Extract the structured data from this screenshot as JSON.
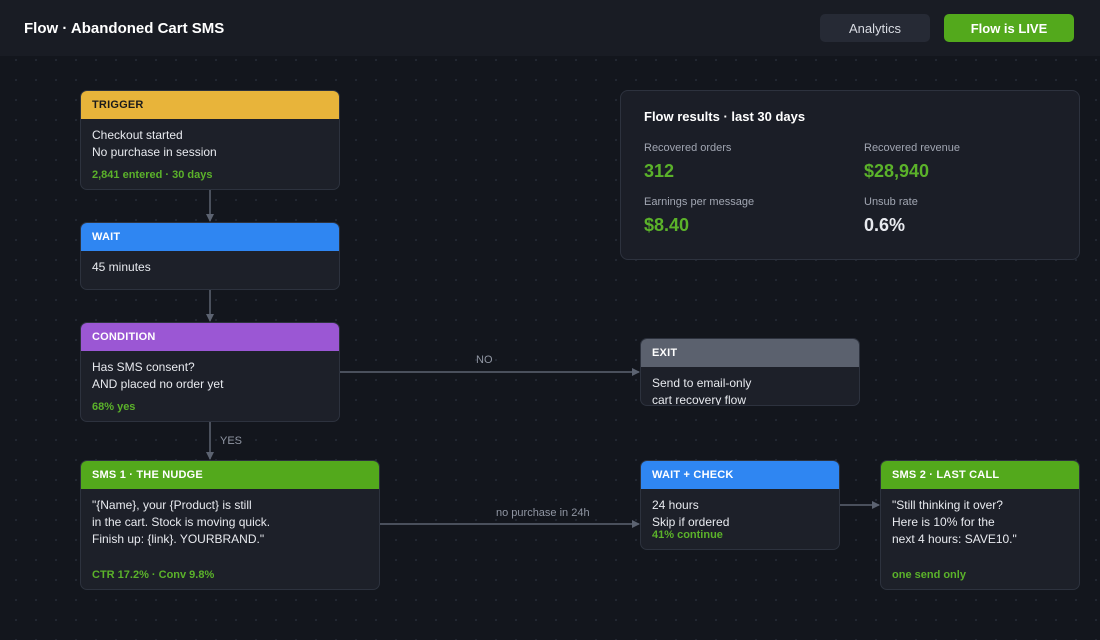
{
  "header": {
    "title": "Flow · Abandoned Cart SMS",
    "analytics_label": "Analytics",
    "live_label": "Flow is LIVE"
  },
  "colors": {
    "background": "#13161d",
    "trigger": "#e8b43a",
    "wait": "#2f86f2",
    "condition": "#9b57d4",
    "sms": "#53a91c",
    "exit": "#5b616e",
    "stat_green": "#5bb22a"
  },
  "nodes": {
    "trigger": {
      "label": "TRIGGER",
      "lines": [
        "Checkout started",
        "No purchase in session"
      ],
      "stat": "2,841 entered · 30 days"
    },
    "wait": {
      "label": "WAIT",
      "lines": [
        "45 minutes"
      ]
    },
    "condition": {
      "label": "CONDITION",
      "lines": [
        "Has SMS consent?",
        "AND placed no order yet"
      ],
      "stat": "68% yes"
    },
    "exit": {
      "label": "EXIT",
      "lines": [
        "Send to email-only",
        "cart recovery flow"
      ]
    },
    "sms1": {
      "label": "SMS 1 · THE NUDGE",
      "lines": [
        "\"{Name}, your {Product} is still",
        "in the cart. Stock is moving quick.",
        "Finish up: {link}. YOURBRAND.\""
      ],
      "stat": "CTR 17.2% · Conv 9.8%"
    },
    "wait_check": {
      "label": "WAIT + CHECK",
      "lines": [
        "24 hours",
        "Skip if ordered"
      ],
      "stat": "41% continue"
    },
    "sms2": {
      "label": "SMS 2 · LAST CALL",
      "lines": [
        "\"Still thinking it over?",
        "Here is 10% for the",
        "next 4 hours: SAVE10.\""
      ],
      "stat": "one send only"
    }
  },
  "edges": {
    "no_label": "NO",
    "yes_label": "YES",
    "no_purchase_label": "no purchase in 24h"
  },
  "results": {
    "title": "Flow results · last 30 days",
    "metrics": [
      {
        "label": "Recovered orders",
        "value": "312",
        "color": "#5bb22a"
      },
      {
        "label": "Recovered revenue",
        "value": "$28,940",
        "color": "#5bb22a"
      },
      {
        "label": "Earnings per message",
        "value": "$8.40",
        "color": "#5bb22a"
      },
      {
        "label": "Unsub rate",
        "value": "0.6%",
        "color": "#e8eaef"
      }
    ]
  }
}
